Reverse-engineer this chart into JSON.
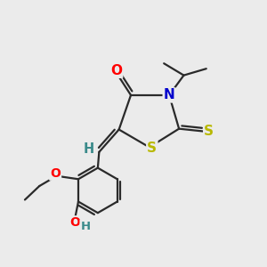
{
  "bg_color": "#ebebeb",
  "bond_color": "#2a2a2a",
  "bond_width": 1.6,
  "dbo": 0.012,
  "atom_colors": {
    "O": "#ff0000",
    "N": "#0000cc",
    "S": "#b8b800",
    "H_teal": "#3a8a8a",
    "C": "#2a2a2a"
  },
  "fs_main": 11,
  "fs_small": 9.5
}
